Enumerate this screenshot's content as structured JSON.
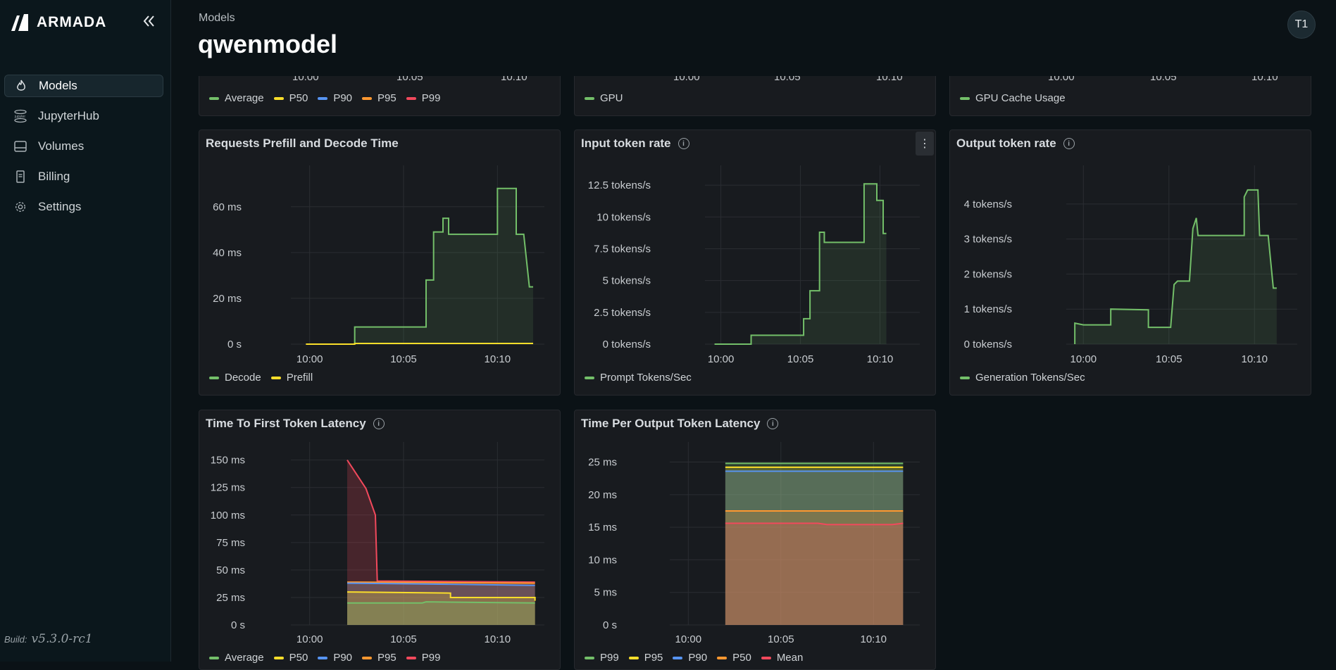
{
  "app": {
    "brand": "ARMADA",
    "build_label": "Build:",
    "build_version": "v5.3.0-rc1"
  },
  "sidebar": {
    "items": [
      {
        "label": "Models",
        "icon": "flame-icon",
        "active": true
      },
      {
        "label": "JupyterHub",
        "icon": "jupyter-icon",
        "active": false
      },
      {
        "label": "Volumes",
        "icon": "hard-drive-icon",
        "active": false
      },
      {
        "label": "Billing",
        "icon": "receipt-icon",
        "active": false
      },
      {
        "label": "Settings",
        "icon": "gear-icon",
        "active": false
      }
    ]
  },
  "header": {
    "breadcrumb": "Models",
    "title": "qwenmodel",
    "avatar": "T1"
  },
  "top_row": [
    {
      "x_ticks": [
        "10:00",
        "10:05",
        "10:10"
      ],
      "legend": [
        "Average",
        "P50",
        "P90",
        "P95",
        "P99"
      ]
    },
    {
      "x_ticks": [
        "10:00",
        "10:05",
        "10:10"
      ],
      "legend": [
        "GPU"
      ]
    },
    {
      "x_ticks": [
        "10:00",
        "10:05",
        "10:10"
      ],
      "legend": [
        "GPU Cache Usage"
      ]
    }
  ],
  "colors": {
    "green": "#73bf69",
    "yellow": "#fade2a",
    "blue": "#5794f2",
    "orange": "#ff9830",
    "red": "#f2495c"
  },
  "chart_data": [
    {
      "id": "prefill_decode",
      "type": "line",
      "title": "Requests Prefill and Decode Time",
      "y_ticks": [
        "60 ms",
        "40 ms",
        "20 ms",
        "0 s"
      ],
      "ylim": [
        0,
        75
      ],
      "x_ticks": [
        "10:00",
        "10:05",
        "10:10"
      ],
      "x_range_min": [
        -1,
        12.5
      ],
      "series": [
        {
          "name": "Decode",
          "color": "#73bf69",
          "fill": true,
          "points": [
            [
              2.4,
              0
            ],
            [
              2.4,
              7.5
            ],
            [
              6.2,
              7.5
            ],
            [
              6.2,
              28
            ],
            [
              6.6,
              28
            ],
            [
              6.6,
              49
            ],
            [
              7.1,
              49
            ],
            [
              7.1,
              55
            ],
            [
              7.4,
              55
            ],
            [
              7.4,
              48
            ],
            [
              10.0,
              48
            ],
            [
              10.0,
              68
            ],
            [
              11.0,
              68
            ],
            [
              11.0,
              48
            ],
            [
              11.4,
              48
            ],
            [
              11.7,
              25
            ],
            [
              11.9,
              25
            ]
          ]
        },
        {
          "name": "Prefill",
          "color": "#fade2a",
          "fill": false,
          "points": [
            [
              -0.2,
              0
            ],
            [
              2.4,
              0
            ],
            [
              2.4,
              0.3
            ],
            [
              11.9,
              0.3
            ]
          ]
        }
      ]
    },
    {
      "id": "input_rate",
      "type": "line",
      "title": "Input token rate",
      "y_ticks": [
        "12.5 tokens/s",
        "10 tokens/s",
        "7.5 tokens/s",
        "5 tokens/s",
        "2.5 tokens/s",
        "0 tokens/s"
      ],
      "ylim": [
        0,
        13.5
      ],
      "x_ticks": [
        "10:00",
        "10:05",
        "10:10"
      ],
      "x_range_min": [
        -1,
        12.5
      ],
      "series": [
        {
          "name": "Prompt Tokens/Sec",
          "color": "#73bf69",
          "fill": true,
          "points": [
            [
              -0.4,
              0
            ],
            [
              1.9,
              0
            ],
            [
              1.9,
              0.7
            ],
            [
              5.2,
              0.7
            ],
            [
              5.2,
              2.0
            ],
            [
              5.6,
              2.0
            ],
            [
              5.6,
              4.2
            ],
            [
              6.2,
              4.2
            ],
            [
              6.2,
              8.8
            ],
            [
              6.5,
              8.8
            ],
            [
              6.5,
              8.0
            ],
            [
              9.0,
              8.0
            ],
            [
              9.0,
              12.6
            ],
            [
              9.8,
              12.6
            ],
            [
              9.8,
              11.3
            ],
            [
              10.2,
              11.3
            ],
            [
              10.2,
              8.7
            ],
            [
              10.4,
              8.7
            ]
          ]
        }
      ]
    },
    {
      "id": "output_rate",
      "type": "line",
      "title": "Output token rate",
      "y_ticks": [
        "4 tokens/s",
        "3 tokens/s",
        "2 tokens/s",
        "1 tokens/s",
        "0 tokens/s"
      ],
      "ylim": [
        0,
        4.9
      ],
      "x_ticks": [
        "10:00",
        "10:05",
        "10:10"
      ],
      "x_range_min": [
        -1,
        12.5
      ],
      "series": [
        {
          "name": "Generation Tokens/Sec",
          "color": "#73bf69",
          "fill": true,
          "points": [
            [
              -0.5,
              0
            ],
            [
              -0.5,
              0.6
            ],
            [
              0,
              0.55
            ],
            [
              1.6,
              0.55
            ],
            [
              1.6,
              1.0
            ],
            [
              3.8,
              0.98
            ],
            [
              3.8,
              0.48
            ],
            [
              5.1,
              0.48
            ],
            [
              5.3,
              1.7
            ],
            [
              5.5,
              1.8
            ],
            [
              6.2,
              1.8
            ],
            [
              6.4,
              3.3
            ],
            [
              6.6,
              3.6
            ],
            [
              6.7,
              3.1
            ],
            [
              9.4,
              3.1
            ],
            [
              9.4,
              4.2
            ],
            [
              9.6,
              4.4
            ],
            [
              10.2,
              4.4
            ],
            [
              10.3,
              3.1
            ],
            [
              10.8,
              3.1
            ],
            [
              11.1,
              1.6
            ],
            [
              11.3,
              1.6
            ]
          ]
        }
      ]
    },
    {
      "id": "ttft",
      "type": "line",
      "title": "Time To First Token Latency",
      "y_ticks": [
        "150 ms",
        "125 ms",
        "100 ms",
        "75 ms",
        "50 ms",
        "25 ms",
        "0 s"
      ],
      "ylim": [
        0,
        160
      ],
      "x_ticks": [
        "10:00",
        "10:05",
        "10:10"
      ],
      "x_range_min": [
        -1,
        12.5
      ],
      "series": [
        {
          "name": "Average",
          "color": "#73bf69",
          "fill": true,
          "points": [
            [
              2.0,
              20
            ],
            [
              6.0,
              20
            ],
            [
              6.2,
              21
            ],
            [
              12.0,
              20
            ],
            [
              12.0,
              20
            ]
          ]
        },
        {
          "name": "P50",
          "color": "#fade2a",
          "fill": true,
          "points": [
            [
              2.0,
              30
            ],
            [
              7.5,
              29
            ],
            [
              7.5,
              25
            ],
            [
              12.0,
              25
            ],
            [
              12.0,
              22
            ]
          ]
        },
        {
          "name": "P90",
          "color": "#5794f2",
          "fill": true,
          "points": [
            [
              2.0,
              38
            ],
            [
              7.5,
              37
            ],
            [
              12.0,
              36
            ]
          ]
        },
        {
          "name": "P95",
          "color": "#ff9830",
          "fill": true,
          "points": [
            [
              2.0,
              39
            ],
            [
              12.0,
              38
            ]
          ]
        },
        {
          "name": "P99",
          "color": "#f2495c",
          "fill": true,
          "points": [
            [
              2.0,
              150
            ],
            [
              3.0,
              124
            ],
            [
              3.5,
              100
            ],
            [
              3.6,
              40
            ],
            [
              12.0,
              39
            ]
          ]
        }
      ]
    },
    {
      "id": "tpot",
      "type": "line",
      "title": "Time Per Output Token Latency",
      "y_ticks": [
        "25 ms",
        "20 ms",
        "15 ms",
        "10 ms",
        "5 ms",
        "0 s"
      ],
      "ylim": [
        0,
        27
      ],
      "x_ticks": [
        "10:00",
        "10:05",
        "10:10"
      ],
      "x_range_min": [
        -1,
        12.5
      ],
      "series": [
        {
          "name": "P99",
          "color": "#73bf69",
          "fill": true,
          "points": [
            [
              2.0,
              24.8
            ],
            [
              11.6,
              24.8
            ]
          ]
        },
        {
          "name": "P95",
          "color": "#fade2a",
          "fill": true,
          "points": [
            [
              2.0,
              24.2
            ],
            [
              11.6,
              24.2
            ]
          ]
        },
        {
          "name": "P90",
          "color": "#5794f2",
          "fill": true,
          "points": [
            [
              2.0,
              23.6
            ],
            [
              11.6,
              23.6
            ]
          ]
        },
        {
          "name": "P50",
          "color": "#ff9830",
          "fill": true,
          "points": [
            [
              2.0,
              17.5
            ],
            [
              11.6,
              17.5
            ]
          ]
        },
        {
          "name": "Mean",
          "color": "#f2495c",
          "fill": true,
          "points": [
            [
              2.0,
              15.6
            ],
            [
              7.0,
              15.6
            ],
            [
              7.5,
              15.4
            ],
            [
              11.0,
              15.4
            ],
            [
              11.6,
              15.6
            ]
          ]
        }
      ]
    }
  ]
}
